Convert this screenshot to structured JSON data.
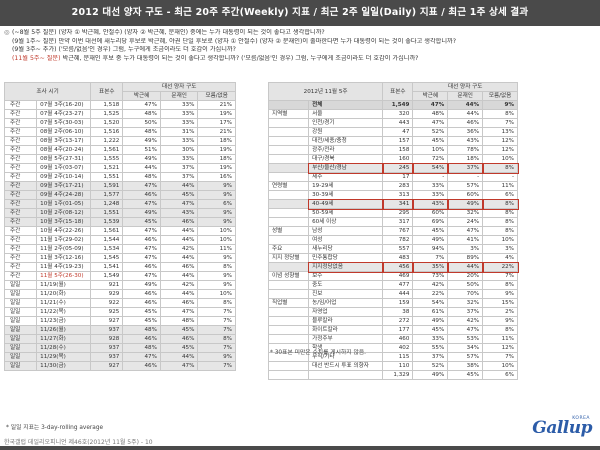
{
  "title": "2012 대선 양자 구도 - 최근 20주 주간(Weekly) 지표 / 최근 2주 일일(Daily) 지표 / 최근 1주 상세 결과",
  "questions": [
    {
      "label": "(~8월 5주 질문)",
      "text": "(양자 ① 박근혜, 안철수) (양자 ② 박근혜, 문재인) 중에는 누가 대통령이 되는 것이 좋다고 생각합니까?",
      "red": false
    },
    {
      "label": "(9월 1주~ 질문)",
      "text": "만약 이번 대선에 새누리당 후보로 박근혜, 야권 단일 후보로 (양자 ① 안철수) (양자 ② 문재인)이 출마한다면 누가 대통령이 되는 것이 좋다고 생각합니까?",
      "red": false
    },
    {
      "label": "(9월 3주~ 추가)",
      "text": "('모름/없음'인 경우) 그럼, 누구에게 조금이라도 더 호감이 가십니까?",
      "red": false
    },
    {
      "label": "(11월 5주~ 질문)",
      "text": "박근혜, 문재인 후보 중 누가 대통령이 되는 것이 좋다고 생각합니까? ('모름/없음'인 경우) 그럼, 누구에게 조금이라도 더 호감이 가십니까?",
      "red": true
    }
  ],
  "left_table": {
    "headers": [
      "조사 시기",
      "표본수",
      "박근혜",
      "문재인",
      "모름/없음"
    ],
    "group_header": "대선 양자 구도",
    "rows": [
      [
        "주간",
        "07월 3주(16-20)",
        "1,518",
        "47%",
        "33%",
        "21%"
      ],
      [
        "주간",
        "07월 4주(23-27)",
        "1,525",
        "48%",
        "33%",
        "19%"
      ],
      [
        "주간",
        "07월 5주(30-03)",
        "1,520",
        "50%",
        "33%",
        "17%"
      ],
      [
        "주간",
        "08월 2주(06-10)",
        "1,516",
        "48%",
        "31%",
        "21%"
      ],
      [
        "주간",
        "08월 3주(13-17)",
        "1,222",
        "49%",
        "33%",
        "18%"
      ],
      [
        "주간",
        "08월 4주(20-24)",
        "1,561",
        "51%",
        "30%",
        "19%"
      ],
      [
        "주간",
        "08월 5주(27-31)",
        "1,555",
        "49%",
        "33%",
        "18%"
      ],
      [
        "주간",
        "09월 1주(03-07)",
        "1,521",
        "44%",
        "37%",
        "19%"
      ],
      [
        "주간",
        "09월 2주(10-14)",
        "1,551",
        "48%",
        "37%",
        "16%"
      ],
      [
        "주간",
        "09월 3주(17-21)",
        "1,591",
        "47%",
        "44%",
        "9%"
      ],
      [
        "주간",
        "09월 4주(24-28)",
        "1,577",
        "46%",
        "45%",
        "9%"
      ],
      [
        "주간",
        "10월 1주(01-05)",
        "1,248",
        "47%",
        "47%",
        "6%"
      ],
      [
        "주간",
        "10월 2주(08-12)",
        "1,551",
        "49%",
        "43%",
        "9%"
      ],
      [
        "주간",
        "10월 3주(15-18)",
        "1,539",
        "45%",
        "46%",
        "9%"
      ],
      [
        "주간",
        "10월 4주(22-26)",
        "1,561",
        "47%",
        "44%",
        "10%"
      ],
      [
        "주간",
        "11월 1주(29-02)",
        "1,544",
        "46%",
        "44%",
        "10%"
      ],
      [
        "주간",
        "11월 2주(05-09)",
        "1,534",
        "47%",
        "42%",
        "11%"
      ],
      [
        "주간",
        "11월 3주(12-16)",
        "1,545",
        "47%",
        "44%",
        "9%"
      ],
      [
        "주간",
        "11월 4주(19-23)",
        "1,541",
        "46%",
        "46%",
        "8%"
      ],
      [
        "주간",
        "11월 5주(26-30)",
        "1,549",
        "47%",
        "44%",
        "9%"
      ],
      [
        "일일",
        "11/19(월)",
        "921",
        "49%",
        "42%",
        "9%"
      ],
      [
        "일일",
        "11/20(화)",
        "929",
        "46%",
        "44%",
        "10%"
      ],
      [
        "일일",
        "11/21(수)",
        "922",
        "46%",
        "46%",
        "8%"
      ],
      [
        "일일",
        "11/22(목)",
        "925",
        "45%",
        "47%",
        "7%"
      ],
      [
        "일일",
        "11/23(금)",
        "927",
        "45%",
        "48%",
        "7%"
      ],
      [
        "일일",
        "11/26(월)",
        "937",
        "48%",
        "45%",
        "7%"
      ],
      [
        "일일",
        "11/27(화)",
        "928",
        "46%",
        "46%",
        "8%"
      ],
      [
        "일일",
        "11/28(수)",
        "937",
        "48%",
        "45%",
        "7%"
      ],
      [
        "일일",
        "11/29(목)",
        "937",
        "47%",
        "44%",
        "9%"
      ],
      [
        "일일",
        "11/30(금)",
        "927",
        "46%",
        "47%",
        "7%"
      ]
    ]
  },
  "left_note": "* 일일 지표는 3-day-rolling average",
  "right_table": {
    "corner": "2012년 11월 5주",
    "group_header": "대선 양자 구도",
    "headers": [
      "표본수",
      "박근혜",
      "문재인",
      "모름/없음"
    ],
    "rows": [
      [
        "",
        "전체",
        "1,549",
        "47%",
        "44%",
        "9%"
      ],
      [
        "지역별",
        "서울",
        "320",
        "48%",
        "44%",
        "8%"
      ],
      [
        "",
        "인천/경기",
        "443",
        "47%",
        "46%",
        "7%"
      ],
      [
        "",
        "강원",
        "47",
        "52%",
        "36%",
        "13%"
      ],
      [
        "",
        "대전/세종/충청",
        "157",
        "45%",
        "43%",
        "12%"
      ],
      [
        "",
        "광주/전라",
        "158",
        "10%",
        "78%",
        "12%"
      ],
      [
        "",
        "대구/경북",
        "160",
        "72%",
        "18%",
        "10%"
      ],
      [
        "",
        "부산/울산/경남",
        "245",
        "54%",
        "37%",
        "8%"
      ],
      [
        "",
        "제주",
        "17",
        "-",
        "-",
        "-"
      ],
      [
        "연령별",
        "19-29세",
        "283",
        "33%",
        "57%",
        "11%"
      ],
      [
        "",
        "30-39세",
        "313",
        "33%",
        "60%",
        "6%"
      ],
      [
        "",
        "40-49세",
        "341",
        "43%",
        "49%",
        "8%"
      ],
      [
        "",
        "50-59세",
        "295",
        "60%",
        "32%",
        "8%"
      ],
      [
        "",
        "60세 이상",
        "317",
        "69%",
        "24%",
        "8%"
      ],
      [
        "성별",
        "남성",
        "767",
        "45%",
        "47%",
        "8%"
      ],
      [
        "",
        "여성",
        "782",
        "49%",
        "41%",
        "10%"
      ],
      [
        "주요",
        "새누리당",
        "557",
        "94%",
        "3%",
        "3%"
      ],
      [
        "지지 정당별",
        "민주통합당",
        "483",
        "7%",
        "89%",
        "4%"
      ],
      [
        "",
        "지지정당없음",
        "456",
        "35%",
        "44%",
        "22%"
      ],
      [
        "이념 성향별",
        "보수",
        "469",
        "73%",
        "20%",
        "7%"
      ],
      [
        "",
        "중도",
        "477",
        "42%",
        "50%",
        "8%"
      ],
      [
        "",
        "진보",
        "444",
        "22%",
        "70%",
        "9%"
      ],
      [
        "직업별",
        "농/임/어업",
        "159",
        "54%",
        "32%",
        "15%"
      ],
      [
        "",
        "자영업",
        "38",
        "61%",
        "37%",
        "2%"
      ],
      [
        "",
        "블루칼라",
        "272",
        "49%",
        "42%",
        "9%"
      ],
      [
        "",
        "화이트칼라",
        "177",
        "45%",
        "47%",
        "8%"
      ],
      [
        "",
        "가정주부",
        "460",
        "33%",
        "53%",
        "11%"
      ],
      [
        "",
        "학생",
        "402",
        "55%",
        "34%",
        "12%"
      ],
      [
        "",
        "무직/기타",
        "115",
        "37%",
        "57%",
        "7%"
      ],
      [
        "",
        "대선 반드시 투표 의향자",
        "110",
        "52%",
        "38%",
        "10%"
      ],
      [
        "",
        "",
        "1,329",
        "49%",
        "45%",
        "6%"
      ]
    ]
  },
  "right_note": "* 30표본 미만은 수치를 게시하지 않음.",
  "footer": "한국갤럽 데일리오피니언 제46호(2012년 11월 5주) - 10",
  "logo": {
    "text": "Gallup",
    "sub": "KOREA"
  },
  "colors": {
    "title_bg": "#4a4a4a",
    "accent_red": "#c0392b",
    "logo_blue": "#2c5ca8",
    "shade": "#e6e6e6"
  }
}
